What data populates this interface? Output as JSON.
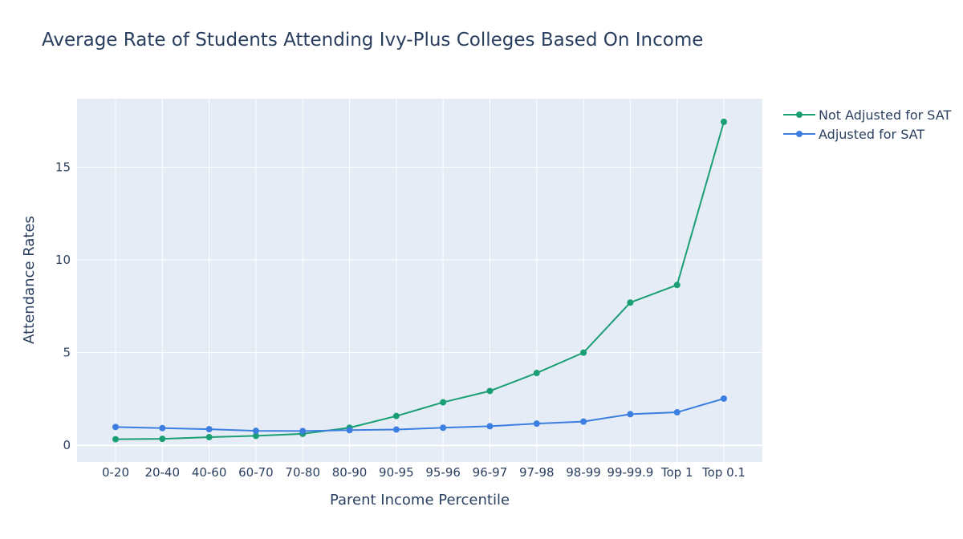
{
  "chart_data": {
    "type": "line",
    "title": "Average Rate of Students Attending Ivy-Plus Colleges Based On Income",
    "xlabel": "Parent Income Percentile",
    "ylabel": "Attendance Rates",
    "categories": [
      "0-20",
      "20-40",
      "40-60",
      "60-70",
      "70-80",
      "80-90",
      "90-95",
      "95-96",
      "96-97",
      "97-98",
      "98-99",
      "99-99.9",
      "Top 1",
      "Top 0.1"
    ],
    "ylim": [
      -0.9,
      18.7
    ],
    "yticks": [
      0,
      5,
      10,
      15
    ],
    "grid": true,
    "legend_position": "top-right",
    "background_color": "#e5ecf6",
    "series": [
      {
        "name": "Not Adjusted for SAT",
        "color": "#1a9e74",
        "values": [
          0.33,
          0.35,
          0.44,
          0.51,
          0.62,
          0.95,
          1.58,
          2.32,
          2.93,
          3.9,
          5.0,
          7.7,
          8.65,
          17.45
        ]
      },
      {
        "name": "Adjusted for SAT",
        "color": "#3c7fe0",
        "values": [
          0.99,
          0.93,
          0.87,
          0.78,
          0.77,
          0.82,
          0.85,
          0.95,
          1.03,
          1.17,
          1.28,
          1.68,
          1.78,
          2.52
        ]
      }
    ]
  }
}
